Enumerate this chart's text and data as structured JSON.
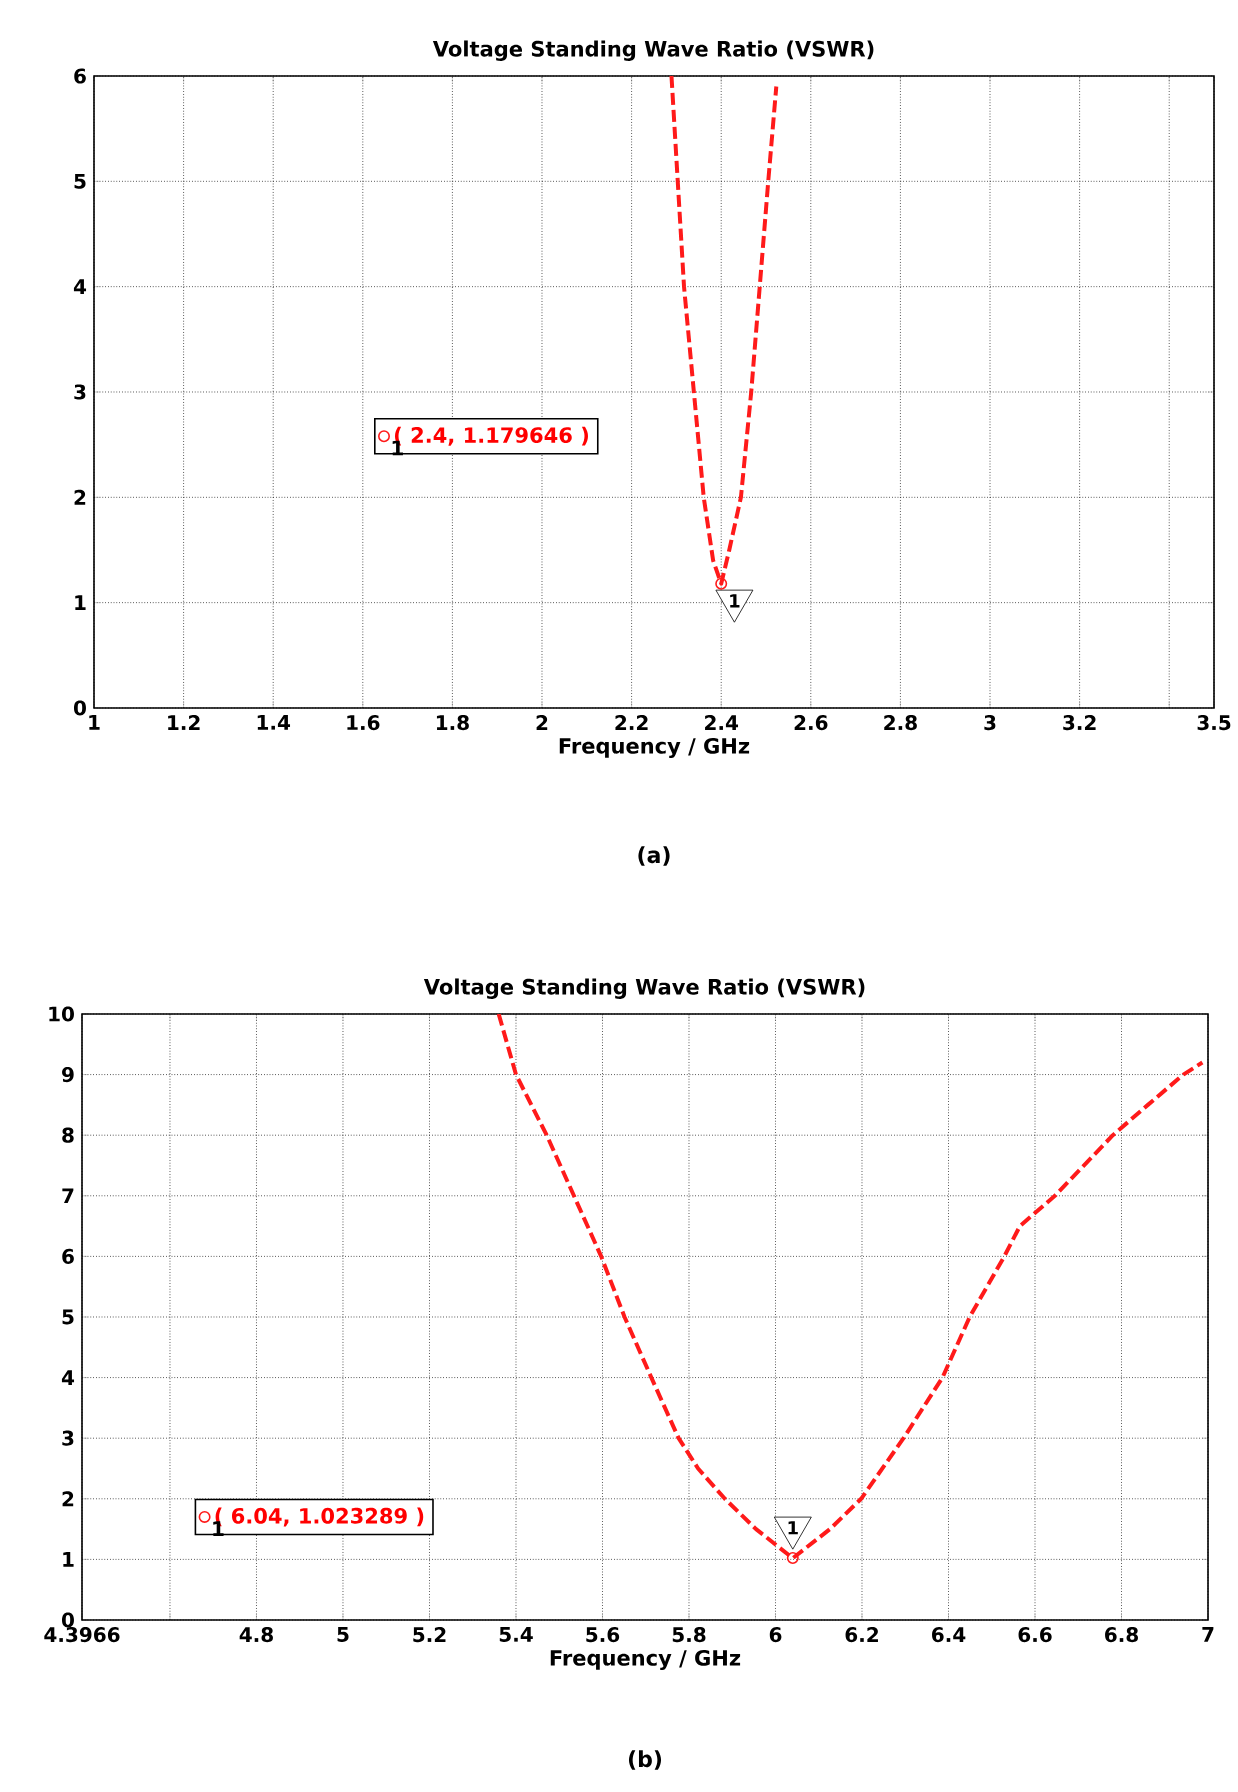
{
  "chart_data": [
    {
      "type": "line",
      "title": "Voltage Standing Wave Ratio (VSWR)",
      "xlabel": "Frequency / GHz",
      "xlim": [
        1,
        3.5
      ],
      "ylim": [
        0,
        6
      ],
      "xticks": [
        1,
        1.2,
        1.4,
        1.6,
        1.8,
        2,
        2.2,
        2.4,
        2.6,
        2.8,
        3,
        3.2,
        {
          "value": 3.4,
          "label": null
        },
        3.5
      ],
      "yticks": [
        0,
        1,
        2,
        3,
        4,
        5,
        6
      ],
      "grid": true,
      "line_style": "dashed",
      "legend": "left",
      "series": [
        {
          "color": "#ff1a1a",
          "x": [
            2.289,
            2.303,
            2.317,
            2.339,
            2.361,
            2.382,
            2.4,
            2.418,
            2.444,
            2.467,
            2.486,
            2.505,
            2.523
          ],
          "values": [
            6,
            5,
            4,
            3,
            2,
            1.4,
            1.18,
            1.5,
            2,
            3,
            4,
            5,
            5.9
          ]
        },
        {
          "type": "scatter",
          "name": "( 2.4, 1.179646 )",
          "color": "#ff1a1a",
          "marker": "circle",
          "x": [
            2.4
          ],
          "values": [
            1.179646
          ]
        }
      ],
      "annotations": [
        {
          "text": "1",
          "x": 2.4,
          "y": 1.179646
        },
        "1",
        "(a)"
      ]
    },
    {
      "type": "line",
      "title": "Voltage Standing Wave Ratio (VSWR)",
      "xlabel": "Frequency / GHz",
      "xlim": [
        4.3966,
        7
      ],
      "ylim": [
        0,
        10
      ],
      "xticks": [
        4.3966,
        {
          "value": 4.6,
          "label": null
        },
        4.8,
        5,
        5.2,
        5.4,
        5.6,
        5.8,
        6,
        6.2,
        6.4,
        6.6,
        6.8,
        7
      ],
      "yticks": [
        0,
        1,
        2,
        3,
        4,
        5,
        6,
        7,
        8,
        9,
        10
      ],
      "grid": true,
      "line_style": "dashed",
      "legend": "bottom left",
      "series": [
        {
          "color": "#ff1a1a",
          "x": [
            5.36,
            5.4,
            5.471,
            5.534,
            5.597,
            5.651,
            5.713,
            5.776,
            5.821,
            5.883,
            5.955,
            6.04,
            6.126,
            6.198,
            6.296,
            6.386,
            6.449,
            6.529,
            6.565,
            6.646,
            6.78,
            6.861,
            6.943,
            6.987
          ],
          "values": [
            10,
            9,
            8,
            7,
            6,
            5,
            4,
            3,
            2.5,
            2,
            1.5,
            1.02,
            1.5,
            2,
            3,
            4,
            5,
            6,
            6.5,
            7,
            8,
            8.5,
            9,
            9.2
          ]
        },
        {
          "type": "scatter",
          "name": "( 6.04, 1.023289 )",
          "color": "#ff1a1a",
          "marker": "circle",
          "x": [
            6.04
          ],
          "values": [
            1.023289
          ]
        }
      ],
      "annotations": [
        {
          "text": "1",
          "x": 6.04,
          "y": 1.023289
        },
        "1",
        "(b)"
      ]
    }
  ]
}
